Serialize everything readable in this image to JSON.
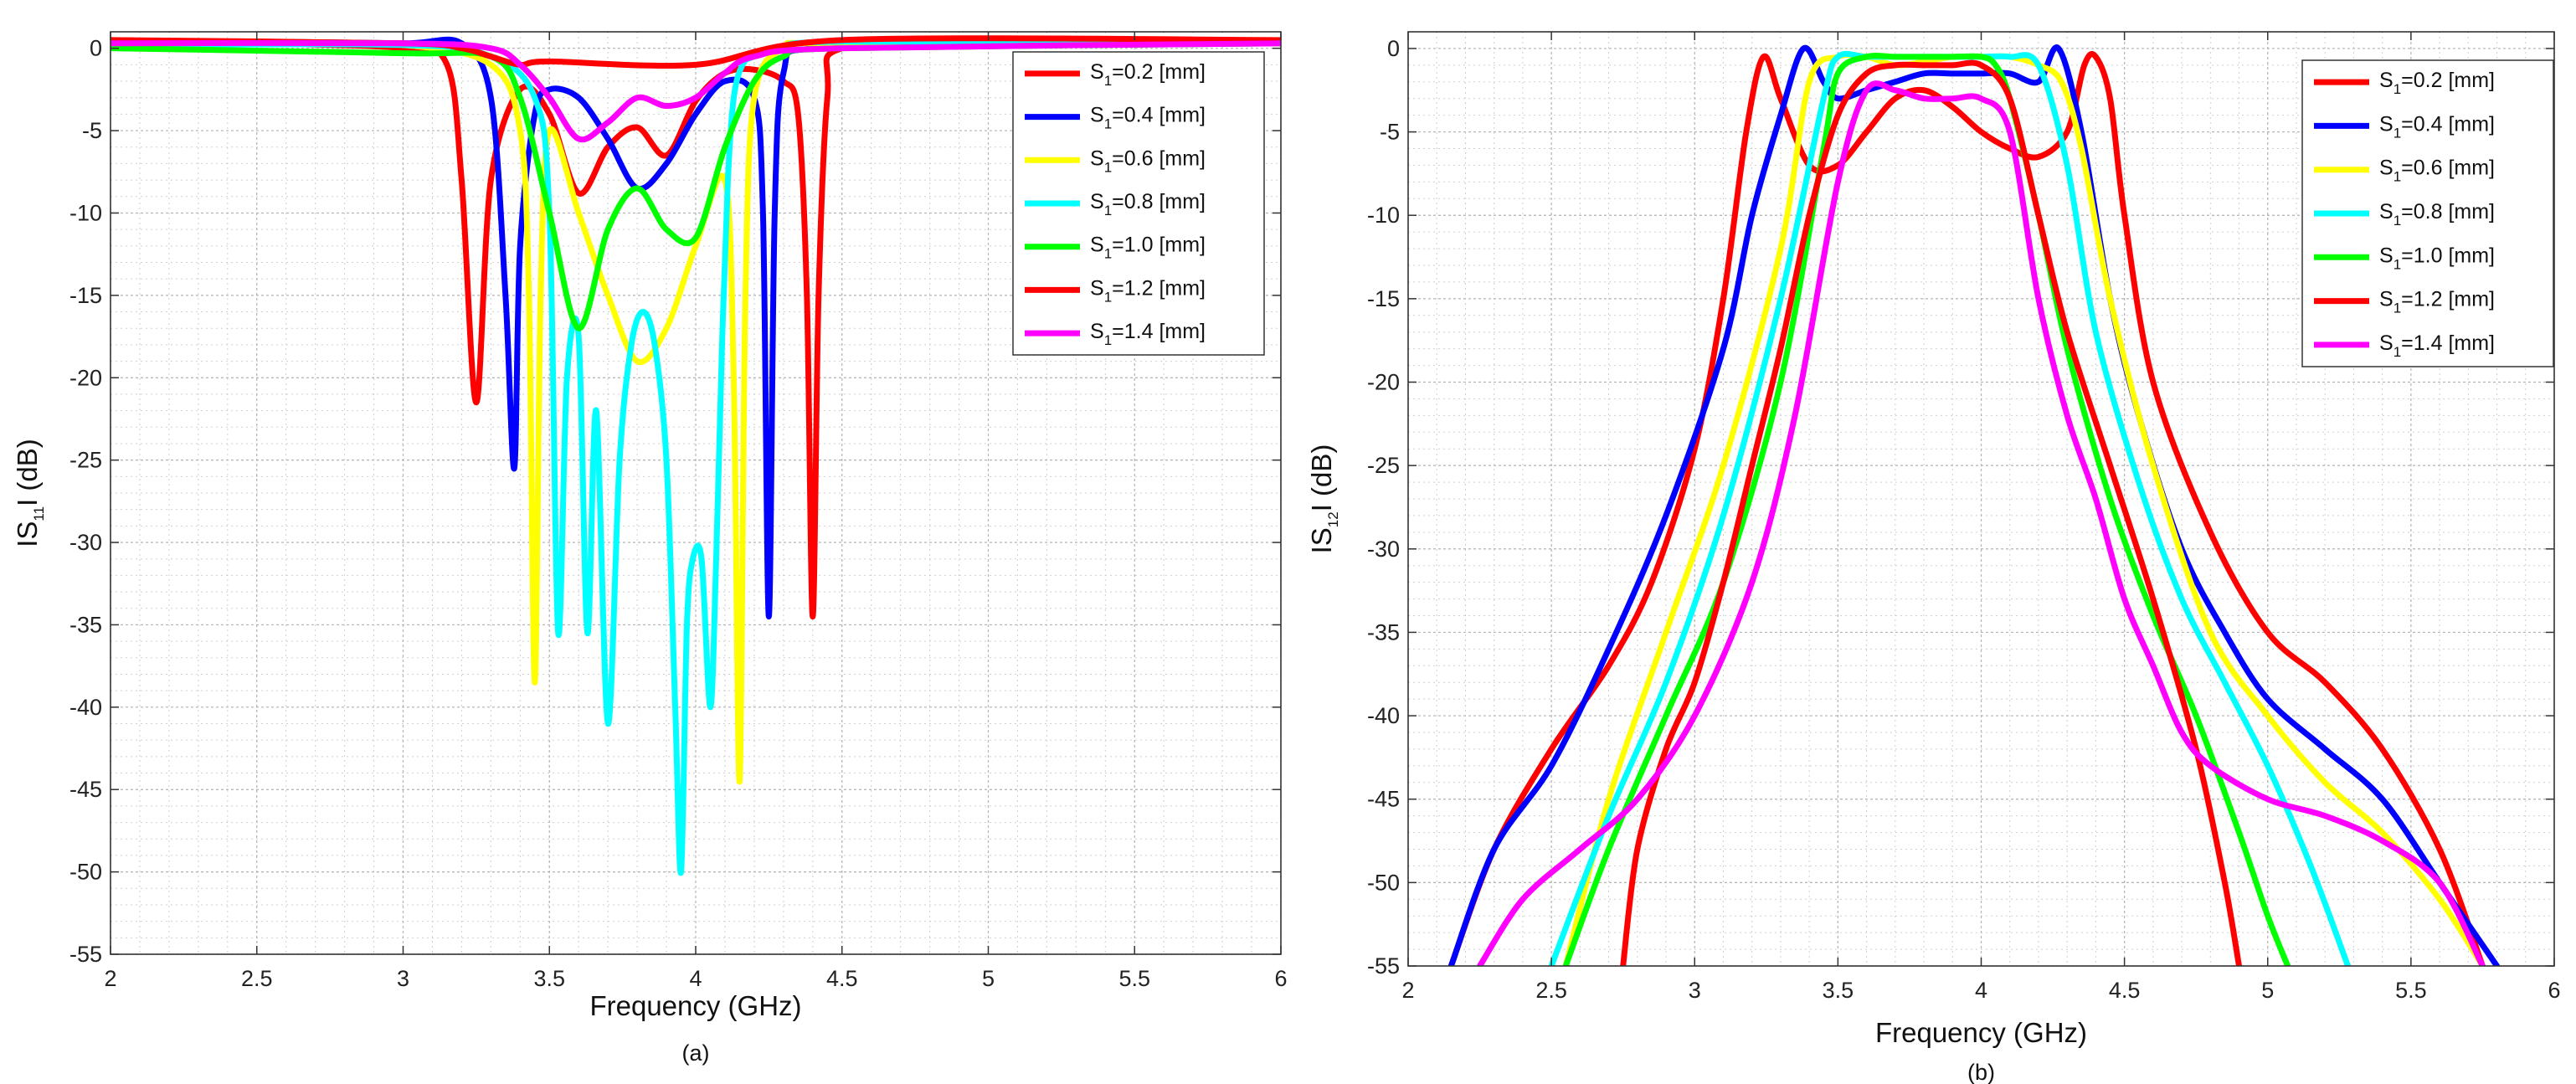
{
  "chart_data": [
    {
      "type": "line",
      "caption": "(a)",
      "xlabel": "Frequency (GHz)",
      "ylabel": {
        "pre": "IS",
        "sub": "11",
        "post": "I (dB)"
      },
      "xlim": [
        2,
        6
      ],
      "ylim": [
        -55,
        1
      ],
      "xticks": [
        2,
        2.5,
        3,
        3.5,
        4,
        4.5,
        5,
        5.5,
        6
      ],
      "xtick_labels": [
        "2",
        "2.5",
        "3",
        "3.5",
        "4",
        "4.5",
        "5",
        "5.5",
        "6"
      ],
      "yticks": [
        0,
        -5,
        -10,
        -15,
        -20,
        -25,
        -30,
        -35,
        -40,
        -45,
        -50,
        -55
      ],
      "ytick_labels": [
        "0",
        "-5",
        "-10",
        "-15",
        "-20",
        "-25",
        "-30",
        "-35",
        "-40",
        "-45",
        "-50",
        "-55"
      ],
      "legend_position": "top-right",
      "series": [
        {
          "name": "S1=0.2 [mm]",
          "legend": {
            "pre": "S",
            "sub": "1",
            "post": "=0.2 [mm]"
          },
          "color": "#ff0000",
          "x": [
            2.0,
            2.5,
            3.0,
            3.15,
            3.2,
            3.25,
            3.3,
            3.4,
            3.5,
            3.6,
            3.7,
            3.8,
            3.9,
            4.0,
            4.1,
            4.2,
            4.3,
            4.35,
            4.38,
            4.4,
            4.42,
            4.45,
            4.5,
            5.0,
            5.5,
            6.0
          ],
          "y": [
            0.5,
            0.3,
            0.0,
            -1.0,
            -8,
            -21.5,
            -8,
            -2.5,
            -4,
            -8.8,
            -6,
            -4.8,
            -6.5,
            -3.2,
            -1.5,
            -1.3,
            -2,
            -4,
            -15,
            -34.5,
            -15,
            -3,
            0,
            0.2,
            0.3,
            0.4
          ]
        },
        {
          "name": "S1=0.4 [mm]",
          "legend": {
            "pre": "S",
            "sub": "1",
            "post": "=0.4 [mm]"
          },
          "color": "#0000ff",
          "x": [
            2.0,
            2.5,
            3.0,
            3.2,
            3.3,
            3.35,
            3.38,
            3.4,
            3.45,
            3.5,
            3.6,
            3.7,
            3.8,
            3.9,
            4.0,
            4.1,
            4.2,
            4.23,
            4.25,
            4.27,
            4.3,
            4.4,
            5.0,
            6.0
          ],
          "y": [
            0.4,
            0.4,
            0.3,
            0.3,
            -3,
            -15,
            -25.5,
            -12,
            -4,
            -2.5,
            -3,
            -5.5,
            -8.5,
            -7,
            -4,
            -2,
            -3,
            -10,
            -34.5,
            -10,
            -1.5,
            0,
            0.2,
            0.3
          ]
        },
        {
          "name": "S1=0.6 [mm]",
          "legend": {
            "pre": "S",
            "sub": "1",
            "post": "=0.6 [mm]"
          },
          "color": "#ffff00",
          "x": [
            2.0,
            2.5,
            3.0,
            3.3,
            3.4,
            3.43,
            3.45,
            3.47,
            3.5,
            3.6,
            3.7,
            3.8,
            3.9,
            4.0,
            4.1,
            4.13,
            4.15,
            4.17,
            4.2,
            4.3,
            4.5,
            6.0
          ],
          "y": [
            0.3,
            0.3,
            0.2,
            -1,
            -5,
            -15,
            -38.5,
            -15,
            -5,
            -10,
            -15,
            -19,
            -17,
            -12,
            -8,
            -20,
            -44.5,
            -15,
            -3,
            0,
            0.3,
            0.3
          ]
        },
        {
          "name": "S1=0.8 [mm]",
          "legend": {
            "pre": "S",
            "sub": "1",
            "post": "=0.8 [mm]"
          },
          "color": "#00ffff",
          "x": [
            2.0,
            3.0,
            3.3,
            3.45,
            3.5,
            3.53,
            3.56,
            3.6,
            3.63,
            3.66,
            3.7,
            3.74,
            3.78,
            3.82,
            3.86,
            3.9,
            3.93,
            3.95,
            3.97,
            3.99,
            4.02,
            4.05,
            4.07,
            4.09,
            4.11,
            4.13,
            4.16,
            4.2,
            4.3,
            4.5,
            6.0
          ],
          "y": [
            0.2,
            0.2,
            -0.5,
            -3,
            -10,
            -35.5,
            -20,
            -17.5,
            -35.5,
            -22,
            -41,
            -25,
            -18,
            -16,
            -18,
            -25,
            -40,
            -50,
            -35,
            -31,
            -31,
            -40,
            -31,
            -18,
            -8,
            -3,
            -1,
            -0.5,
            0,
            0.4,
            0.4
          ]
        },
        {
          "name": "S1=1.0 [mm]",
          "legend": {
            "pre": "S",
            "sub": "1",
            "post": "=1.0 [mm]"
          },
          "color": "#00ff00",
          "x": [
            2.0,
            3.0,
            3.3,
            3.4,
            3.5,
            3.6,
            3.7,
            3.8,
            3.9,
            4.0,
            4.1,
            4.2,
            4.3,
            4.5,
            6.0
          ],
          "y": [
            0.0,
            -0.3,
            -0.5,
            -3,
            -10,
            -17,
            -11,
            -8.5,
            -11,
            -11.5,
            -6,
            -2,
            -0.5,
            0,
            0.3
          ]
        },
        {
          "name": "S1=1.2 [mm]",
          "legend": {
            "pre": "S",
            "sub": "1",
            "post": "=1.2 [mm]"
          },
          "color": "#ff0000",
          "x": [
            2.0,
            3.0,
            3.2,
            3.3,
            3.4,
            3.5,
            4.0,
            4.5,
            6.0
          ],
          "y": [
            0.5,
            0.3,
            0.0,
            -0.5,
            -1,
            -0.8,
            -1,
            0.5,
            0.5
          ]
        },
        {
          "name": "S1=1.4 [mm]",
          "legend": {
            "pre": "S",
            "sub": "1",
            "post": "=1.4 [mm]"
          },
          "color": "#ff00ff",
          "x": [
            2.0,
            3.0,
            3.3,
            3.4,
            3.5,
            3.6,
            3.7,
            3.8,
            3.9,
            4.0,
            4.1,
            4.2,
            4.5,
            6.0
          ],
          "y": [
            0.3,
            0.3,
            0.0,
            -1,
            -3,
            -5.5,
            -4.5,
            -3,
            -3.5,
            -3,
            -1.5,
            -0.5,
            0,
            0.3
          ]
        }
      ]
    },
    {
      "type": "line",
      "caption": "(b)",
      "xlabel": "Frequency (GHz)",
      "ylabel": {
        "pre": "IS",
        "sub": "12",
        "post": "I (dB)"
      },
      "xlim": [
        2,
        6
      ],
      "ylim": [
        -55,
        1
      ],
      "xticks": [
        2,
        2.5,
        3,
        3.5,
        4,
        4.5,
        5,
        5.5,
        6
      ],
      "xtick_labels": [
        "2",
        "2.5",
        "3",
        "3.5",
        "4",
        "4.5",
        "5",
        "5.5",
        "6"
      ],
      "yticks": [
        0,
        -5,
        -10,
        -15,
        -20,
        -25,
        -30,
        -35,
        -40,
        -45,
        -50,
        -55
      ],
      "ytick_labels": [
        "0",
        "-5",
        "-10",
        "-15",
        "-20",
        "-25",
        "-30",
        "-35",
        "-40",
        "-45",
        "-50",
        "-55"
      ],
      "legend_position": "top-right",
      "series": [
        {
          "name": "S1=0.2 [mm]",
          "legend": {
            "pre": "S",
            "sub": "1",
            "post": "=0.2 [mm]"
          },
          "color": "#ff0000",
          "x": [
            2.15,
            2.3,
            2.5,
            2.7,
            2.85,
            3.0,
            3.1,
            3.18,
            3.24,
            3.3,
            3.4,
            3.5,
            3.6,
            3.7,
            3.8,
            3.9,
            4.0,
            4.1,
            4.2,
            4.3,
            4.36,
            4.4,
            4.45,
            4.5,
            4.6,
            4.8,
            5.0,
            5.2,
            5.4,
            5.6,
            5.75
          ],
          "y": [
            -55,
            -48,
            -42,
            -37,
            -32,
            -24,
            -15,
            -5,
            -0.5,
            -3,
            -7,
            -7,
            -5,
            -3,
            -2.5,
            -3.5,
            -5,
            -6,
            -6.5,
            -5,
            -1,
            -0.5,
            -3,
            -10,
            -20,
            -29,
            -35,
            -38,
            -42,
            -48,
            -55
          ]
        },
        {
          "name": "S1=0.4 [mm]",
          "legend": {
            "pre": "S",
            "sub": "1",
            "post": "=0.4 [mm]"
          },
          "color": "#0000ff",
          "x": [
            2.15,
            2.3,
            2.5,
            2.7,
            2.9,
            3.1,
            3.2,
            3.3,
            3.38,
            3.45,
            3.5,
            3.6,
            3.7,
            3.8,
            3.9,
            4.0,
            4.1,
            4.2,
            4.27,
            4.35,
            4.45,
            4.55,
            4.7,
            4.85,
            5.0,
            5.2,
            5.4,
            5.6,
            5.8
          ],
          "y": [
            -55,
            -48,
            -43,
            -36,
            -28,
            -18,
            -10,
            -4,
            0,
            -2,
            -3,
            -2.5,
            -2,
            -1.5,
            -1.5,
            -1.5,
            -1.5,
            -2,
            0,
            -5,
            -15,
            -22,
            -30,
            -35,
            -39,
            -42,
            -45,
            -50,
            -55
          ]
        },
        {
          "name": "S1=0.6 [mm]",
          "legend": {
            "pre": "S",
            "sub": "1",
            "post": "=0.6 [mm]"
          },
          "color": "#ffff00",
          "x": [
            2.55,
            2.7,
            2.9,
            3.1,
            3.3,
            3.4,
            3.5,
            3.6,
            3.7,
            3.8,
            3.9,
            4.0,
            4.1,
            4.2,
            4.28,
            4.35,
            4.45,
            4.6,
            4.8,
            5.0,
            5.2,
            5.4,
            5.6,
            5.75
          ],
          "y": [
            -55,
            -45,
            -35,
            -25,
            -12,
            -2,
            -0.5,
            -0.5,
            -1,
            -0.8,
            -0.5,
            -0.5,
            -0.5,
            -1,
            -2,
            -6,
            -15,
            -25,
            -35,
            -40,
            -44,
            -47,
            -51,
            -55
          ]
        },
        {
          "name": "S1=0.8 [mm]",
          "legend": {
            "pre": "S",
            "sub": "1",
            "post": "=0.8 [mm]"
          },
          "color": "#00ffff",
          "x": [
            2.5,
            2.7,
            2.9,
            3.1,
            3.3,
            3.45,
            3.5,
            3.6,
            3.7,
            3.8,
            3.9,
            4.0,
            4.1,
            4.2,
            4.3,
            4.4,
            4.55,
            4.7,
            4.85,
            5.0,
            5.15,
            5.28
          ],
          "y": [
            -55,
            -46,
            -38,
            -28,
            -15,
            -3,
            -0.5,
            -0.5,
            -0.5,
            -0.5,
            -0.5,
            -0.5,
            -0.5,
            -1,
            -7,
            -17,
            -26,
            -33,
            -38,
            -43,
            -49,
            -55
          ]
        },
        {
          "name": "S1=1.0 [mm]",
          "legend": {
            "pre": "S",
            "sub": "1",
            "post": "=1.0 [mm]"
          },
          "color": "#00ff00",
          "x": [
            2.55,
            2.7,
            2.9,
            3.1,
            3.3,
            3.45,
            3.5,
            3.6,
            3.7,
            3.8,
            3.9,
            4.0,
            4.05,
            4.1,
            4.2,
            4.3,
            4.45,
            4.6,
            4.75,
            4.9,
            5.0,
            5.07
          ],
          "y": [
            -55,
            -48,
            -40,
            -32,
            -20,
            -6,
            -1.5,
            -0.5,
            -0.5,
            -0.5,
            -0.5,
            -0.5,
            -1,
            -3,
            -10,
            -18,
            -27,
            -34,
            -40,
            -47,
            -52,
            -55
          ]
        },
        {
          "name": "S1=1.2 [mm]",
          "legend": {
            "pre": "S",
            "sub": "1",
            "post": "=1.2 [mm]"
          },
          "color": "#ff0000",
          "x": [
            2.75,
            2.8,
            2.9,
            3.0,
            3.1,
            3.2,
            3.3,
            3.4,
            3.5,
            3.6,
            3.7,
            3.8,
            3.9,
            4.0,
            4.1,
            4.2,
            4.3,
            4.45,
            4.6,
            4.75,
            4.85,
            4.9
          ],
          "y": [
            -55,
            -48,
            -42,
            -38,
            -32,
            -25,
            -18,
            -10,
            -4,
            -1.5,
            -1,
            -1,
            -1,
            -1,
            -3,
            -10,
            -17,
            -25,
            -33,
            -42,
            -50,
            -55
          ]
        },
        {
          "name": "S1=1.4 [mm]",
          "legend": {
            "pre": "S",
            "sub": "1",
            "post": "=1.4 [mm]"
          },
          "color": "#ff00ff",
          "x": [
            2.25,
            2.4,
            2.6,
            2.8,
            3.0,
            3.2,
            3.35,
            3.5,
            3.6,
            3.7,
            3.8,
            3.9,
            4.0,
            4.1,
            4.2,
            4.3,
            4.4,
            4.5,
            4.6,
            4.7,
            4.8,
            5.0,
            5.2,
            5.4,
            5.6,
            5.75
          ],
          "y": [
            -55,
            -51,
            -48,
            -45,
            -40,
            -32,
            -22,
            -8,
            -2.5,
            -2.5,
            -3,
            -3,
            -3,
            -5,
            -15,
            -22,
            -27,
            -33,
            -37,
            -41,
            -43,
            -45,
            -46,
            -47.5,
            -50,
            -55
          ]
        }
      ]
    }
  ]
}
